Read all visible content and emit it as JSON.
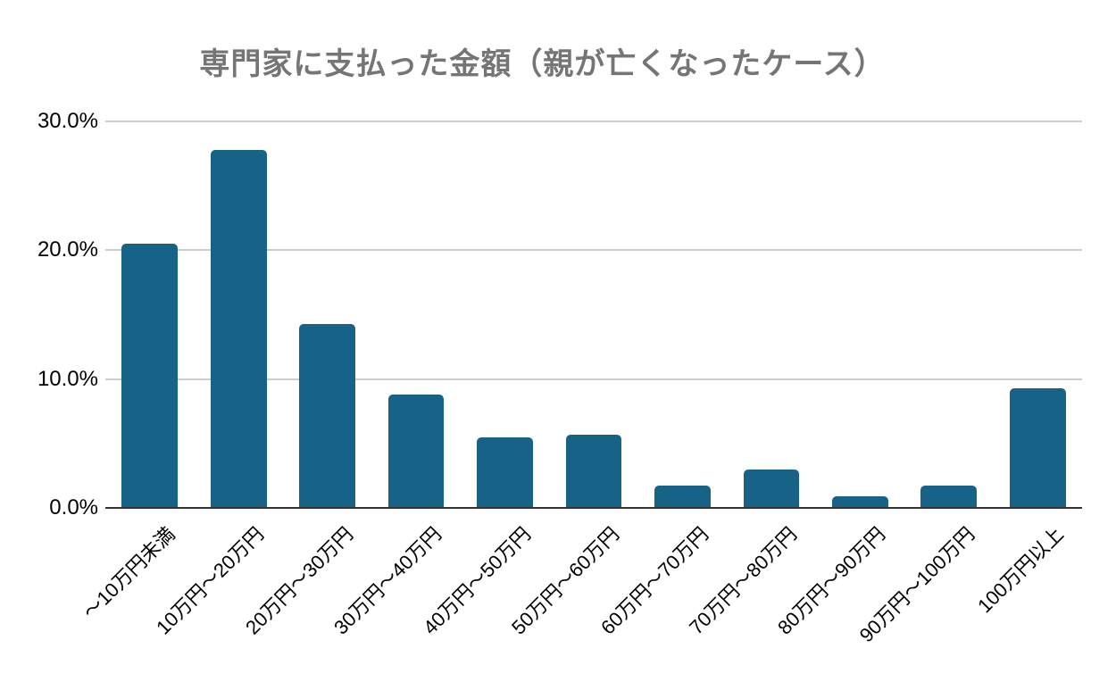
{
  "chart_data": {
    "type": "bar",
    "title": "専門家に支払った金額（親が亡くなったケース）",
    "categories": [
      "～10万円未満",
      "10万円～20万円",
      "20万円～30万円",
      "30万円～40万円",
      "40万円～50万円",
      "50万円～60万円",
      "60万円～70万円",
      "70万円～80万円",
      "80万円～90万円",
      "90万円～100万円",
      "100万円以上"
    ],
    "values": [
      20.5,
      27.8,
      14.3,
      8.8,
      5.5,
      5.7,
      1.7,
      3.0,
      0.9,
      1.7,
      9.3
    ],
    "unit": "%",
    "xlabel": "",
    "ylabel": "",
    "ylim": [
      0,
      30
    ],
    "yticks": [
      {
        "value": 0,
        "label": "0.0%"
      },
      {
        "value": 10,
        "label": "10.0%"
      },
      {
        "value": 20,
        "label": "20.0%"
      },
      {
        "value": 30,
        "label": "30.0%"
      }
    ],
    "grid": "horizontal",
    "legend_position": "none",
    "colors": {
      "bar": "#176287",
      "title": "#757575",
      "gridline": "#cccccc",
      "axis_line": "#333333",
      "tick_labels": "#000000",
      "background": "#ffffff"
    }
  }
}
